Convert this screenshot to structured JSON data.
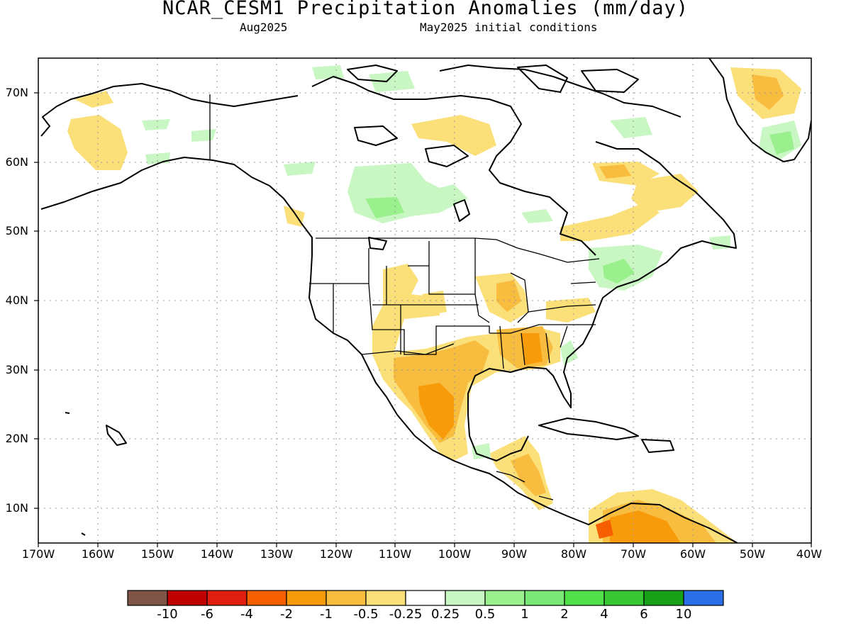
{
  "title": "NCAR_CESM1 Precipitation Anomalies (mm/day)",
  "subtitle_left": "Aug2025",
  "subtitle_right": "May2025 initial conditions",
  "lat_labels": [
    "70N",
    "60N",
    "50N",
    "40N",
    "30N",
    "20N",
    "10N"
  ],
  "lon_labels": [
    "170W",
    "160W",
    "150W",
    "140W",
    "130W",
    "120W",
    "110W",
    "100W",
    "90W",
    "80W",
    "70W",
    "60W",
    "50W",
    "40W"
  ],
  "colorbar": {
    "colors": [
      "#7f5548",
      "#c00000",
      "#e01e10",
      "#f55f00",
      "#f79b0b",
      "#f8bc3f",
      "#fbe07a",
      "#ffffff",
      "#c8f7c3",
      "#9bf08e",
      "#7ae877",
      "#52e04a",
      "#38c835",
      "#18a018",
      "#2a6ee8"
    ],
    "labels": [
      "-10",
      "-6",
      "-4",
      "-2",
      "-1",
      "-0.5",
      "-0.25",
      "0.25",
      "0.5",
      "1",
      "2",
      "4",
      "6",
      "10"
    ]
  },
  "map_colors": {
    "light_orange": "#fbe07a",
    "orange": "#f8bc3f",
    "dark_orange": "#f79b0b",
    "red_orange": "#f55f00",
    "light_green": "#c8f7c3",
    "green": "#9bf08e",
    "mid_green": "#7ae877",
    "coast": "#000000",
    "grid": "#999999"
  }
}
